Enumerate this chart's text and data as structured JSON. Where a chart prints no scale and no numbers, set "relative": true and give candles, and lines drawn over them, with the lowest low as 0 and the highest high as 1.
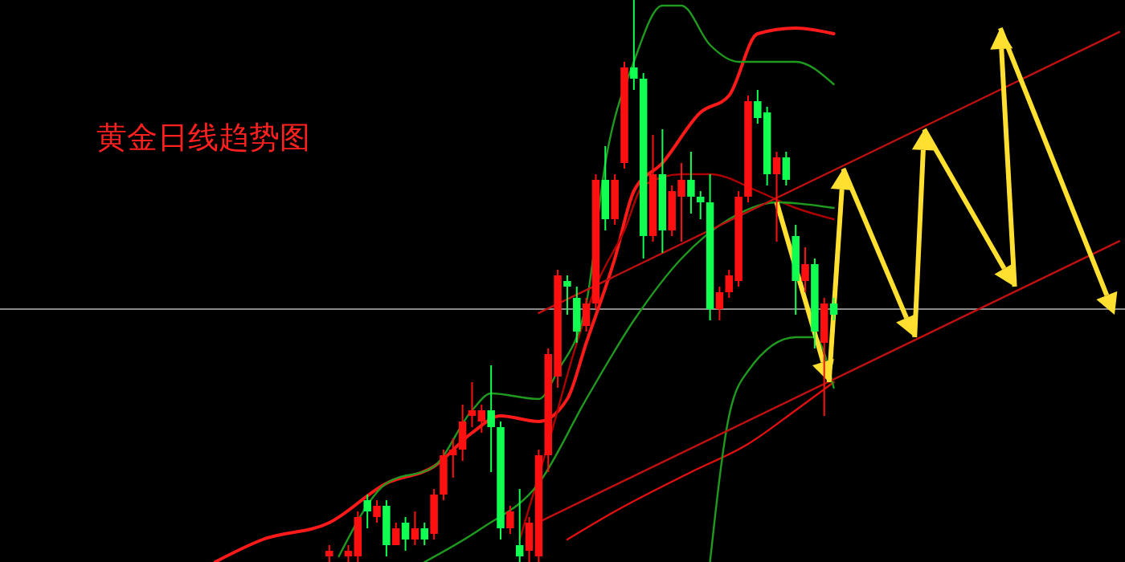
{
  "chart_data": {
    "type": "candlestick",
    "title": "黄金日线趋势图",
    "relative": true,
    "categories": [
      null,
      null,
      null,
      null,
      null,
      null,
      null,
      null,
      null,
      null,
      null,
      null,
      null,
      null,
      null,
      null,
      null,
      null,
      null,
      null,
      null,
      null,
      null,
      null,
      null,
      null,
      null,
      null,
      null,
      null,
      null,
      null,
      null,
      null,
      null,
      null,
      null,
      null,
      null,
      null,
      null,
      null,
      null,
      null,
      null,
      null,
      null,
      null,
      null,
      null,
      null,
      null,
      null,
      null,
      null,
      null,
      null,
      null,
      null,
      null,
      null,
      null,
      null,
      null,
      null,
      null,
      null,
      null,
      null,
      null,
      null,
      null,
      null,
      null,
      null,
      null,
      null,
      null,
      null,
      null,
      null,
      null,
      null,
      null,
      null,
      null,
      null,
      null,
      null,
      null,
      null,
      null,
      null,
      null,
      null,
      null,
      null,
      null,
      null,
      null,
      null,
      null,
      null,
      null,
      null,
      null,
      null,
      null,
      null,
      null,
      null,
      null,
      null,
      null,
      null,
      null,
      null,
      null
    ],
    "ohlc": [
      null,
      null,
      null,
      null,
      null,
      null,
      null,
      null,
      null,
      null,
      null,
      null,
      null,
      null,
      null,
      null,
      null,
      null,
      null,
      null,
      null,
      null,
      null,
      null,
      null,
      null,
      null,
      null,
      null,
      null,
      null,
      null,
      null,
      null,
      [
        0.01,
        0.03,
        0.0,
        0.02
      ],
      null,
      [
        0.01,
        0.03,
        0.0,
        0.02
      ],
      [
        0.01,
        0.09,
        0.0,
        0.08
      ],
      [
        0.11,
        0.12,
        0.06,
        0.09
      ],
      [
        0.08,
        0.11,
        0.07,
        0.1
      ],
      [
        0.1,
        0.11,
        0.01,
        0.03
      ],
      [
        0.03,
        0.07,
        0.03,
        0.06
      ],
      [
        0.07,
        0.08,
        0.02,
        0.04
      ],
      [
        0.04,
        0.09,
        0.03,
        0.06
      ],
      [
        0.06,
        0.07,
        0.03,
        0.04
      ],
      [
        0.05,
        0.13,
        0.04,
        0.12
      ],
      [
        0.12,
        0.2,
        0.11,
        0.19
      ],
      [
        0.19,
        0.22,
        0.15,
        0.2
      ],
      [
        0.2,
        0.28,
        0.18,
        0.25
      ],
      [
        0.26,
        0.32,
        0.24,
        0.27
      ],
      [
        0.25,
        0.28,
        0.23,
        0.27
      ],
      [
        0.27,
        0.35,
        0.16,
        0.24
      ],
      [
        0.24,
        0.25,
        0.04,
        0.06
      ],
      [
        0.06,
        0.1,
        0.05,
        0.09
      ],
      [
        0.03,
        0.13,
        0.0,
        0.01
      ],
      [
        0.02,
        0.08,
        0.0,
        0.07
      ],
      [
        0.01,
        0.2,
        0.0,
        0.19
      ],
      [
        0.19,
        0.38,
        0.16,
        0.37
      ],
      [
        0.33,
        0.52,
        0.31,
        0.51
      ],
      [
        0.5,
        0.51,
        0.44,
        0.49
      ],
      [
        0.47,
        0.49,
        0.39,
        0.41
      ],
      [
        0.42,
        0.47,
        0.41,
        0.46
      ],
      [
        0.46,
        0.69,
        0.45,
        0.68
      ],
      [
        0.68,
        0.74,
        0.59,
        0.61
      ],
      [
        0.61,
        0.69,
        0.6,
        0.68
      ],
      [
        0.71,
        0.89,
        0.7,
        0.88
      ],
      [
        0.88,
        1.0,
        0.84,
        0.86
      ],
      [
        0.86,
        0.87,
        0.54,
        0.58
      ],
      [
        0.58,
        0.76,
        0.57,
        0.69
      ],
      [
        0.69,
        0.77,
        0.55,
        0.59
      ],
      [
        0.59,
        0.67,
        0.58,
        0.66
      ],
      [
        0.65,
        0.71,
        0.57,
        0.68
      ],
      [
        0.68,
        0.73,
        0.62,
        0.65
      ],
      [
        0.65,
        0.66,
        0.61,
        0.64
      ],
      [
        0.64,
        0.69,
        0.43,
        0.45
      ],
      [
        0.45,
        0.49,
        0.43,
        0.48
      ],
      [
        0.48,
        0.52,
        0.47,
        0.51
      ],
      [
        0.5,
        0.66,
        0.49,
        0.65
      ],
      [
        0.65,
        0.83,
        0.64,
        0.82
      ],
      [
        0.82,
        0.84,
        0.78,
        0.79
      ],
      [
        0.8,
        0.81,
        0.67,
        0.69
      ],
      [
        0.69,
        0.73,
        0.57,
        0.72
      ],
      [
        0.72,
        0.73,
        0.67,
        0.68
      ],
      [
        0.58,
        0.6,
        0.44,
        0.5
      ],
      [
        0.5,
        0.56,
        0.48,
        0.53
      ],
      [
        0.53,
        0.54,
        0.38,
        0.41
      ],
      [
        0.39,
        0.47,
        0.26,
        0.46
      ],
      [
        0.46,
        0.47,
        0.43,
        0.44
      ],
      null,
      null,
      null,
      null,
      null,
      null,
      null,
      null,
      null,
      null,
      null,
      null,
      null,
      null,
      null,
      null,
      null,
      null,
      null,
      null,
      null,
      null,
      null,
      null,
      null,
      null,
      null,
      null,
      null,
      null
    ],
    "series": [
      {
        "type": "line",
        "color": "#ff1a1a",
        "values": [
          null,
          null,
          null,
          null,
          null,
          null,
          null,
          null,
          null,
          null,
          null,
          null,
          null,
          null,
          null,
          null,
          null,
          null,
          null,
          null,
          null,
          null,
          0,
          null,
          null,
          null,
          null,
          0.04,
          null,
          null,
          null,
          null,
          null,
          null,
          0.07,
          null,
          null,
          null,
          null,
          null,
          0.14,
          null,
          null,
          null,
          null,
          0.17,
          null,
          null,
          null,
          0.23,
          null,
          null,
          0.26,
          null,
          null,
          null,
          0.25,
          null,
          null,
          0.29,
          null,
          0.39,
          null,
          null,
          0.54,
          null,
          0.66,
          null,
          null,
          0.71,
          null,
          null,
          null,
          0.8,
          null,
          null,
          0.83,
          null,
          null,
          0.94,
          null,
          null,
          null,
          0.95,
          null,
          null,
          null,
          0.94,
          null,
          null,
          null,
          null,
          null,
          null,
          null,
          null,
          null,
          null,
          null,
          null,
          null,
          null,
          null,
          null,
          null,
          null,
          null,
          null,
          null,
          null,
          null,
          null,
          null,
          null,
          null,
          null,
          null,
          null
        ]
      },
      {
        "type": "line",
        "color": "#e01010",
        "values": [
          null,
          null,
          null,
          null,
          null,
          null,
          null,
          null,
          null,
          null,
          null,
          null,
          null,
          null,
          null,
          null,
          null,
          null,
          null,
          null,
          null,
          null,
          null,
          null,
          null,
          null,
          null,
          null,
          null,
          null,
          null,
          null,
          null,
          null,
          null,
          null,
          null,
          null,
          null,
          null,
          null,
          null,
          null,
          null,
          null,
          null,
          null,
          null,
          null,
          null,
          null,
          null,
          null,
          null,
          null,
          null,
          null,
          null,
          null,
          0.04,
          null,
          null,
          null,
          null,
          0.09,
          null,
          null,
          null,
          null,
          null,
          null,
          null,
          0.16,
          null,
          null,
          null,
          null,
          null,
          0.21,
          null,
          null,
          null,
          null,
          0.27,
          null,
          null,
          null,
          0.32,
          null,
          null,
          null,
          null,
          null,
          null,
          null,
          null,
          null,
          null,
          null,
          null,
          null,
          null,
          null,
          null,
          null,
          null,
          null,
          null,
          null,
          null,
          null,
          null,
          null,
          null,
          null,
          null,
          null,
          null
        ]
      },
      {
        "type": "line",
        "color": "#b00000",
        "values": [
          null,
          null,
          null,
          null,
          null,
          null,
          null,
          null,
          null,
          null,
          null,
          null,
          null,
          null,
          null,
          null,
          null,
          null,
          null,
          null,
          null,
          null,
          null,
          null,
          null,
          null,
          null,
          null,
          null,
          null,
          null,
          null,
          null,
          null,
          null,
          null,
          null,
          null,
          null,
          null,
          null,
          null,
          null,
          null,
          null,
          null,
          null,
          null,
          null,
          null,
          null,
          null,
          null,
          null,
          0.04,
          null,
          null,
          0.21,
          null,
          null,
          0.39,
          null,
          0.49,
          null,
          null,
          0.59,
          null,
          0.67,
          null,
          null,
          null,
          0.69,
          null,
          null,
          0.69,
          null,
          null,
          null,
          null,
          0.66,
          null,
          null,
          null,
          0.63,
          null,
          null,
          null,
          0.61,
          null,
          null,
          null,
          null,
          null,
          null,
          null,
          null,
          null,
          null,
          null,
          null,
          null,
          null,
          null,
          null,
          null,
          null,
          null,
          null,
          null,
          null,
          null,
          null,
          null,
          null,
          null,
          null,
          null,
          null
        ]
      },
      {
        "type": "line",
        "color": "#1f9a1f",
        "values": [
          null,
          null,
          null,
          null,
          null,
          null,
          null,
          null,
          null,
          null,
          null,
          null,
          null,
          null,
          null,
          null,
          null,
          null,
          null,
          null,
          null,
          null,
          null,
          null,
          null,
          null,
          null,
          null,
          null,
          null,
          null,
          null,
          null,
          null,
          null,
          0.01,
          null,
          null,
          null,
          null,
          0.14,
          null,
          null,
          null,
          null,
          0.17,
          null,
          null,
          null,
          0.27,
          null,
          0.3,
          null,
          null,
          null,
          null,
          0.29,
          null,
          0.34,
          null,
          null,
          0.46,
          null,
          0.71,
          null,
          null,
          0.89,
          null,
          null,
          0.99,
          null,
          0.99,
          null,
          null,
          0.92,
          null,
          null,
          0.89,
          null,
          null,
          0.89,
          null,
          null,
          0.89,
          null,
          null,
          null,
          0.85,
          null,
          null,
          null,
          null,
          null,
          null,
          null,
          null,
          null,
          null,
          null,
          null,
          null,
          null,
          null,
          null,
          null,
          null,
          null,
          null,
          null,
          null,
          null,
          null,
          null,
          null,
          null,
          null,
          null,
          null
        ]
      },
      {
        "type": "line",
        "color": "#1f9a1f",
        "values": [
          null,
          null,
          null,
          null,
          null,
          null,
          null,
          null,
          null,
          null,
          null,
          null,
          null,
          null,
          null,
          null,
          null,
          null,
          null,
          null,
          null,
          null,
          null,
          null,
          null,
          null,
          null,
          null,
          null,
          null,
          null,
          null,
          null,
          null,
          null,
          null,
          null,
          null,
          null,
          null,
          null,
          null,
          null,
          null,
          null,
          null,
          null,
          null,
          null,
          null,
          null,
          null,
          null,
          null,
          null,
          null,
          null,
          null,
          null,
          null,
          null,
          null,
          null,
          null,
          null,
          null,
          null,
          null,
          null,
          null,
          null,
          null,
          null,
          null,
          0,
          null,
          0.26,
          null,
          0.34,
          null,
          null,
          null,
          null,
          0.4,
          null,
          0.4,
          null,
          0.31,
          null,
          null,
          null,
          null,
          null,
          null,
          null,
          null,
          null,
          null,
          null,
          null,
          null,
          null,
          null,
          null,
          null,
          null,
          null,
          null,
          null,
          null,
          null,
          null,
          null,
          null,
          null,
          null,
          null,
          null
        ]
      },
      {
        "type": "line",
        "color": "#1f9a1f",
        "values": [
          null,
          null,
          null,
          null,
          null,
          null,
          null,
          null,
          null,
          null,
          null,
          null,
          null,
          null,
          null,
          null,
          null,
          null,
          null,
          null,
          null,
          null,
          null,
          null,
          null,
          null,
          null,
          null,
          null,
          null,
          null,
          null,
          null,
          null,
          null,
          null,
          null,
          null,
          null,
          null,
          null,
          null,
          null,
          null,
          0,
          null,
          null,
          null,
          null,
          null,
          0.06,
          null,
          null,
          null,
          null,
          null,
          0.14,
          null,
          null,
          null,
          null,
          0.29,
          null,
          null,
          null,
          null,
          0.43,
          null,
          null,
          null,
          null,
          0.54,
          null,
          null,
          null,
          null,
          0.61,
          null,
          null,
          null,
          null,
          0.64,
          null,
          null,
          null,
          null,
          null,
          0.63,
          null,
          null,
          null,
          null,
          null,
          null,
          null,
          null,
          null,
          null,
          null,
          null,
          null,
          null,
          null,
          null,
          null,
          null,
          null,
          null,
          null,
          null,
          null,
          null,
          null,
          null,
          null,
          null,
          null,
          null
        ]
      },
      {
        "type": "line",
        "color": "#c01010",
        "values": [
          null,
          null,
          null,
          null,
          null,
          null,
          null,
          null,
          null,
          null,
          null,
          null,
          null,
          null,
          null,
          null,
          null,
          null,
          null,
          null,
          null,
          null,
          null,
          null,
          null,
          null,
          null,
          null,
          null,
          null,
          null,
          null,
          null,
          null,
          null,
          null,
          null,
          null,
          null,
          null,
          null,
          null,
          null,
          null,
          null,
          null,
          null,
          null,
          null,
          null,
          null,
          null,
          null,
          null,
          null,
          null,
          0.443,
          null,
          null,
          null,
          null,
          null,
          null,
          null,
          null,
          null,
          null,
          null,
          null,
          null,
          null,
          null,
          null,
          null,
          null,
          null,
          null,
          null,
          null,
          null,
          null,
          null,
          null,
          null,
          null,
          null,
          null,
          null,
          null,
          null,
          null,
          null,
          null,
          null,
          null,
          null,
          null,
          null,
          null,
          null,
          null,
          null,
          null,
          null,
          null,
          null,
          null,
          null,
          null,
          null,
          null,
          null,
          null,
          null,
          null,
          null,
          null,
          0.943
        ]
      },
      {
        "type": "line",
        "color": "#c01010",
        "values": [
          null,
          null,
          null,
          null,
          null,
          null,
          null,
          null,
          null,
          null,
          null,
          null,
          null,
          null,
          null,
          null,
          null,
          null,
          null,
          null,
          null,
          null,
          null,
          null,
          null,
          null,
          null,
          null,
          null,
          null,
          null,
          null,
          null,
          null,
          null,
          null,
          null,
          null,
          null,
          null,
          null,
          null,
          null,
          null,
          null,
          null,
          null,
          null,
          null,
          null,
          null,
          null,
          null,
          null,
          null,
          null,
          0.071,
          null,
          null,
          null,
          null,
          null,
          null,
          null,
          null,
          null,
          null,
          null,
          null,
          null,
          null,
          null,
          null,
          null,
          null,
          null,
          null,
          null,
          null,
          null,
          null,
          null,
          null,
          null,
          null,
          null,
          null,
          null,
          null,
          null,
          null,
          null,
          null,
          null,
          null,
          null,
          null,
          null,
          null,
          null,
          null,
          null,
          null,
          null,
          null,
          null,
          null,
          null,
          null,
          null,
          null,
          null,
          null,
          null,
          null,
          null,
          null,
          0.571
        ]
      }
    ],
    "ref_lines": [
      {
        "axis": "y",
        "value": 0.45,
        "color": "#8a8a8a"
      }
    ]
  }
}
